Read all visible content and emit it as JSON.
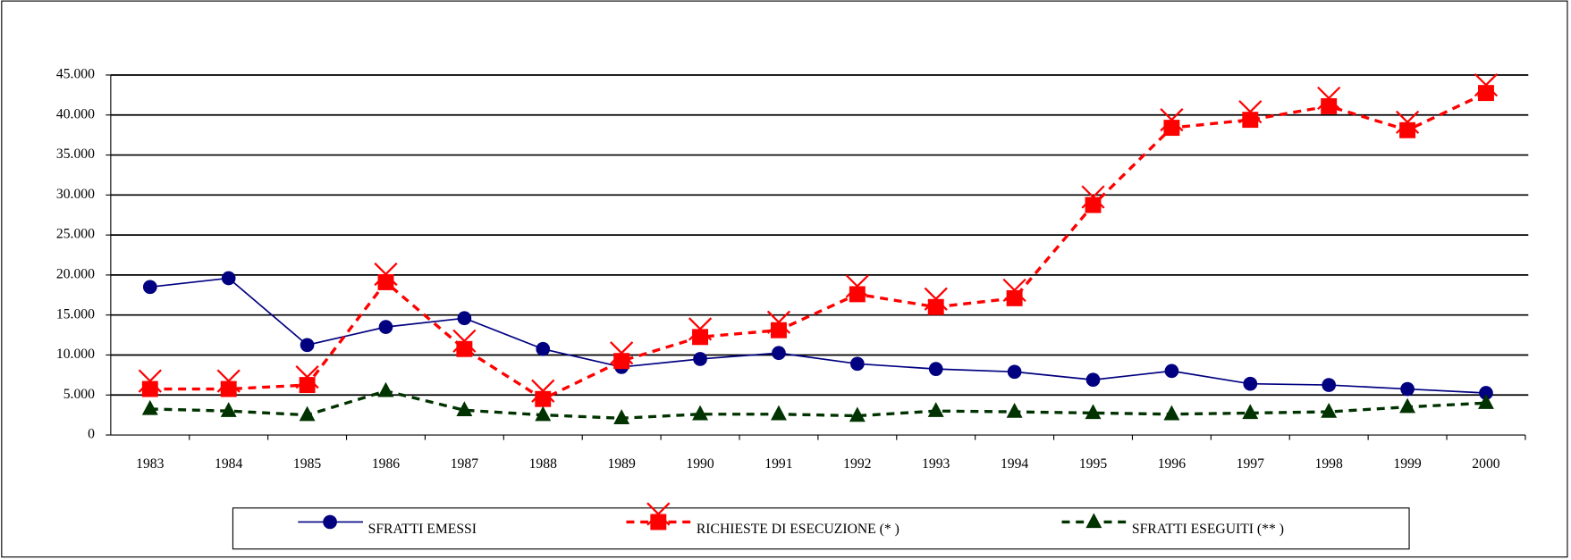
{
  "chart_data": {
    "type": "line",
    "categories": [
      "1983",
      "1984",
      "1985",
      "1986",
      "1987",
      "1988",
      "1989",
      "1990",
      "1991",
      "1992",
      "1993",
      "1994",
      "1995",
      "1996",
      "1997",
      "1998",
      "1999",
      "2000"
    ],
    "series": [
      {
        "name": "SFRATTI EMESSI",
        "color": "#000080",
        "marker": "circle",
        "dash": false,
        "values": [
          18500,
          19600,
          11250,
          13500,
          14600,
          10750,
          8500,
          9500,
          10250,
          8900,
          8250,
          7900,
          6900,
          8000,
          6400,
          6250,
          5750,
          5250
        ]
      },
      {
        "name": "RICHIESTE DI ESECUZIONE  (* )",
        "color": "#ff0000",
        "marker": "square-x",
        "dash": true,
        "values": [
          5750,
          5750,
          6250,
          19100,
          10750,
          4500,
          9250,
          12250,
          13100,
          17600,
          16000,
          17100,
          28750,
          38400,
          39400,
          41100,
          38100,
          42750
        ]
      },
      {
        "name": "SFRATTI ESEGUITI (** )",
        "color": "#003300",
        "marker": "triangle",
        "dash": true,
        "values": [
          3250,
          3000,
          2500,
          5500,
          3100,
          2500,
          2100,
          2600,
          2600,
          2400,
          3000,
          2900,
          2750,
          2600,
          2750,
          2900,
          3500,
          4000
        ]
      }
    ],
    "ylim": [
      0,
      45000
    ],
    "yticks": [
      0,
      {
        "value": 5000,
        "label": "5.000"
      },
      {
        "value": 10000,
        "label": "10.000"
      },
      {
        "value": 15000,
        "label": "15.000"
      },
      {
        "value": 20000,
        "label": "20.000"
      },
      {
        "value": 25000,
        "label": "25.000"
      },
      {
        "value": 30000,
        "label": "30.000"
      },
      {
        "value": 35000,
        "label": "35.000"
      },
      {
        "value": 40000,
        "label": "40.000"
      },
      {
        "value": 45000,
        "label": "45.000"
      }
    ],
    "grid": true,
    "legend": "bottom"
  }
}
